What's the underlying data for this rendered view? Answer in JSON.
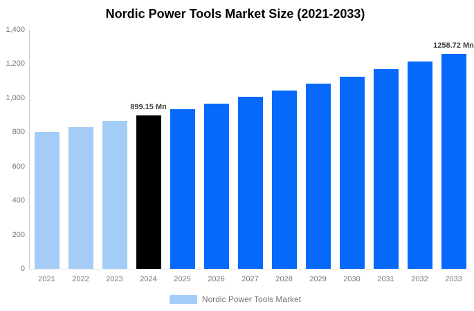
{
  "title": "Nordic Power Tools Market Size (2021-2033)",
  "chart_data": {
    "type": "bar",
    "title": "Nordic Power Tools Market Size (2021-2033)",
    "categories": [
      "2021",
      "2022",
      "2023",
      "2024",
      "2025",
      "2026",
      "2027",
      "2028",
      "2029",
      "2030",
      "2031",
      "2032",
      "2033"
    ],
    "values": [
      799.35,
      831.32,
      864.57,
      899.15,
      933.4,
      968.95,
      1005.85,
      1044.16,
      1083.93,
      1125.22,
      1168.08,
      1212.58,
      1258.72
    ],
    "bar_colors": [
      "#a3cdf7",
      "#a3cdf7",
      "#a3cdf7",
      "#000000",
      "#0669fc",
      "#0669fc",
      "#0669fc",
      "#0669fc",
      "#0669fc",
      "#0669fc",
      "#0669fc",
      "#0669fc",
      "#0669fc"
    ],
    "xlabel": "",
    "ylabel": "",
    "ylim": [
      0,
      1400
    ],
    "ytick_step": 200,
    "ytick_labels": [
      "0",
      "200",
      "400",
      "600",
      "800",
      "1,000",
      "1,200",
      "1,400"
    ],
    "grid": false,
    "legend_position": "bottom",
    "annotations": [
      {
        "category": "2024",
        "text": "899.15 Mn"
      },
      {
        "category": "2033",
        "text": "1258.72 Mn"
      }
    ]
  },
  "legend": {
    "label": "Nordic Power Tools Market",
    "swatch_color": "#a3cdf7"
  },
  "colors": {
    "historical_bar": "#a3cdf7",
    "highlight_bar": "#000000",
    "forecast_bar": "#0669fc",
    "axis_text": "#757575",
    "annotation_text": "#3d3d3d",
    "axis_line": "#cccccc",
    "baseline": "#e6e6e6",
    "background": "#ffffff"
  }
}
